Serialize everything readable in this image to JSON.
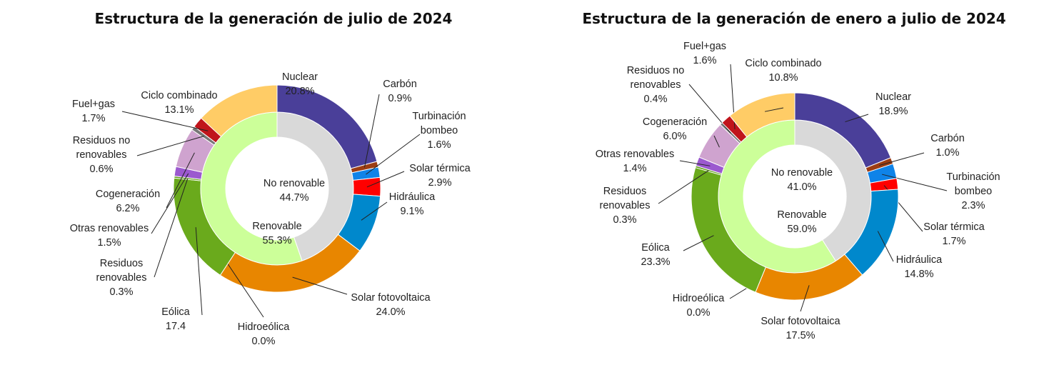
{
  "chart_data": [
    {
      "type": "donut",
      "title": "Estructura de la generación de julio de 2024",
      "inner_ring": [
        {
          "name": "No renovable",
          "value": 44.7,
          "display": "44.7%",
          "color": "#d9d9d9"
        },
        {
          "name": "Renovable",
          "value": 55.3,
          "display": "55.3%",
          "color": "#ccff99"
        }
      ],
      "outer_ring": [
        {
          "name": "Nuclear",
          "value": 20.8,
          "display": "20.8%",
          "color": "#4a3f99"
        },
        {
          "name": "Carbón",
          "value": 0.9,
          "display": "0.9%",
          "color": "#9c3d13"
        },
        {
          "name": "Turbinación bombeo",
          "value": 1.6,
          "display": "1.6%",
          "color": "#0f83e8"
        },
        {
          "name": "Solar térmica",
          "value": 2.9,
          "display": "2.9%",
          "color": "#ff0000"
        },
        {
          "name": "Hidráulica",
          "value": 9.1,
          "display": "9.1%",
          "color": "#0088cc"
        },
        {
          "name": "Solar fotovoltaica",
          "value": 24.0,
          "display": "24.0%",
          "color": "#e88600"
        },
        {
          "name": "Hidroeólica",
          "value": 0.0,
          "display": "0.0%",
          "color": "#6aa84f"
        },
        {
          "name": "Eólica",
          "value": 17.4,
          "display": "17.4",
          "color": "#6aaa1c"
        },
        {
          "name": "Residuos renovables",
          "value": 0.3,
          "display": "0.3%",
          "color": "#5b9b12"
        },
        {
          "name": "Otras renovables",
          "value": 1.5,
          "display": "1.5%",
          "color": "#9b59cf"
        },
        {
          "name": "Cogeneración",
          "value": 6.2,
          "display": "6.2%",
          "color": "#cfa3cf"
        },
        {
          "name": "Residuos no renovables",
          "value": 0.6,
          "display": "0.6%",
          "color": "#777777"
        },
        {
          "name": "Fuel+gas",
          "value": 1.7,
          "display": "1.7%",
          "color": "#c0151b"
        },
        {
          "name": "Ciclo combinado",
          "value": 13.1,
          "display": "13.1%",
          "color": "#ffcc66"
        }
      ]
    },
    {
      "type": "donut",
      "title": "Estructura de la generación de enero a julio de 2024",
      "inner_ring": [
        {
          "name": "No renovable",
          "value": 41.0,
          "display": "41.0%",
          "color": "#d9d9d9"
        },
        {
          "name": "Renovable",
          "value": 59.0,
          "display": "59.0%",
          "color": "#ccff99"
        }
      ],
      "outer_ring": [
        {
          "name": "Nuclear",
          "value": 18.9,
          "display": "18.9%",
          "color": "#4a3f99"
        },
        {
          "name": "Carbón",
          "value": 1.0,
          "display": "1.0%",
          "color": "#9c3d13"
        },
        {
          "name": "Turbinación bombeo",
          "value": 2.3,
          "display": "2.3%",
          "color": "#0f83e8"
        },
        {
          "name": "Solar térmica",
          "value": 1.7,
          "display": "1.7%",
          "color": "#ff0000"
        },
        {
          "name": "Hidráulica",
          "value": 14.8,
          "display": "14.8%",
          "color": "#0088cc"
        },
        {
          "name": "Solar fotovoltaica",
          "value": 17.5,
          "display": "17.5%",
          "color": "#e88600"
        },
        {
          "name": "Hidroeólica",
          "value": 0.0,
          "display": "0.0%",
          "color": "#6aa84f"
        },
        {
          "name": "Eólica",
          "value": 23.3,
          "display": "23.3%",
          "color": "#6aaa1c"
        },
        {
          "name": "Residuos renovables",
          "value": 0.3,
          "display": "0.3%",
          "color": "#5b9b12"
        },
        {
          "name": "Otras renovables",
          "value": 1.4,
          "display": "1.4%",
          "color": "#9b59cf"
        },
        {
          "name": "Cogeneración",
          "value": 6.0,
          "display": "6.0%",
          "color": "#cfa3cf"
        },
        {
          "name": "Residuos no renovables",
          "value": 0.4,
          "display": "0.4%",
          "color": "#777777"
        },
        {
          "name": "Fuel+gas",
          "value": 1.6,
          "display": "1.6%",
          "color": "#c0151b"
        },
        {
          "name": "Ciclo combinado",
          "value": 10.8,
          "display": "10.8%",
          "color": "#ffcc66"
        }
      ]
    }
  ]
}
